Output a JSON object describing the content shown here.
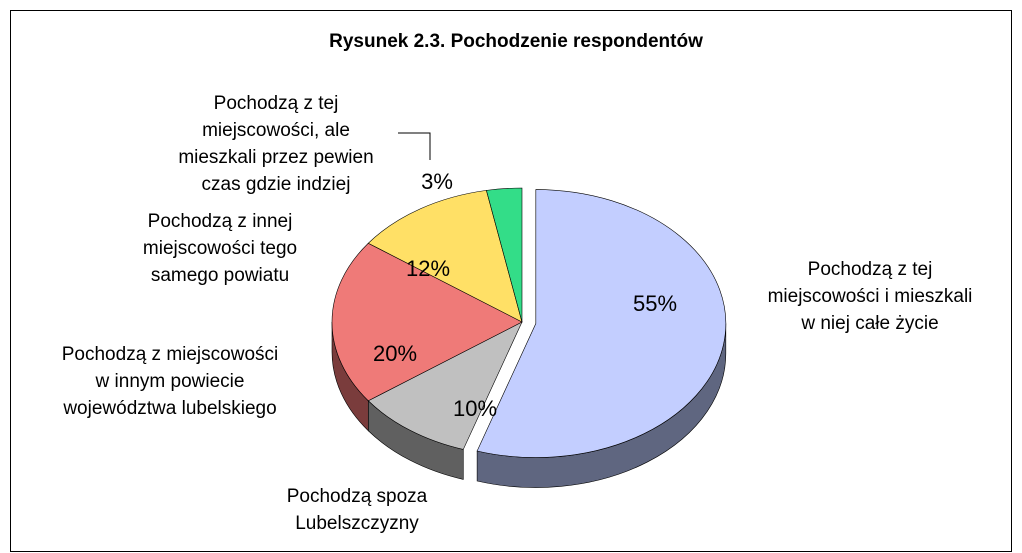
{
  "chart_data": {
    "type": "pie",
    "title": "Rysunek 2.3. Pochodzenie respondentów",
    "categories": [
      [
        "Pochodzą z tej",
        "miejscowości i mieszkali",
        "w niej całe życie"
      ],
      [
        "Pochodzą spoza",
        "Lubelszczyzny"
      ],
      [
        "Pochodzą z miejscowości",
        "w innym powiecie",
        "województwa lubelskiego"
      ],
      [
        "Pochodzą z innej",
        "miejscowości tego",
        "samego powiatu"
      ],
      [
        "Pochodzą z tej",
        "miejscowości, ale",
        "mieszkali przez pewien",
        "czas gdzie indziej"
      ]
    ],
    "values": [
      55,
      10,
      20,
      12,
      3
    ],
    "value_labels": [
      "55%",
      "10%",
      "20%",
      "12%",
      "3%"
    ],
    "colors": [
      "#c3ceff",
      "#c0c0c0",
      "#ef7a78",
      "#ffe066",
      "#33dd88"
    ],
    "side_colors": [
      "#5f6680",
      "#606060",
      "#7a3c3c",
      "#807033",
      "#1a6e44"
    ]
  }
}
